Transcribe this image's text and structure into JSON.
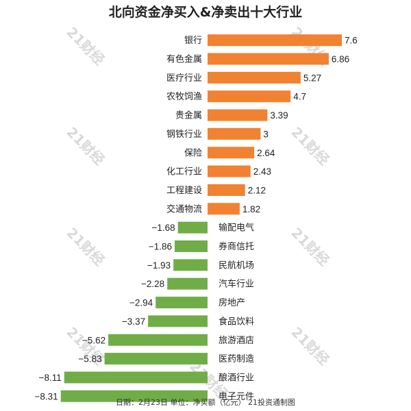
{
  "chart_data": {
    "type": "bar",
    "orientation": "horizontal",
    "title": "北向资金净买入&净卖出十大行业",
    "categories": [
      "银行",
      "有色金属",
      "医疗行业",
      "农牧饲渔",
      "贵金属",
      "钢铁行业",
      "保险",
      "化工行业",
      "工程建设",
      "交通物流",
      "输配电气",
      "券商信托",
      "民航机场",
      "汽车行业",
      "房地产",
      "食品饮料",
      "旅游酒店",
      "医药制造",
      "酿酒行业",
      "电子元件"
    ],
    "values": [
      7.6,
      6.86,
      5.27,
      4.7,
      3.39,
      3,
      2.64,
      2.43,
      2.12,
      1.82,
      -1.68,
      -1.86,
      -1.93,
      -2.28,
      -2.94,
      -3.37,
      -5.62,
      -5.83,
      -8.11,
      -8.31
    ],
    "value_labels": [
      "7.6",
      "6.86",
      "5.27",
      "4.7",
      "3.39",
      "3",
      "2.64",
      "2.43",
      "2.12",
      "1.82",
      "−1.68",
      "−1.86",
      "−1.93",
      "−2.28",
      "−2.94",
      "−3.37",
      "−5.62",
      "−5.83",
      "−8.11",
      "−8.31"
    ],
    "positive_color": "#f08232",
    "negative_color": "#70ad47",
    "footnote": "日期：2月23日 单位：净买额（亿元） 21投资通制图",
    "watermark": "21财经",
    "grid": false,
    "legend": "none"
  }
}
